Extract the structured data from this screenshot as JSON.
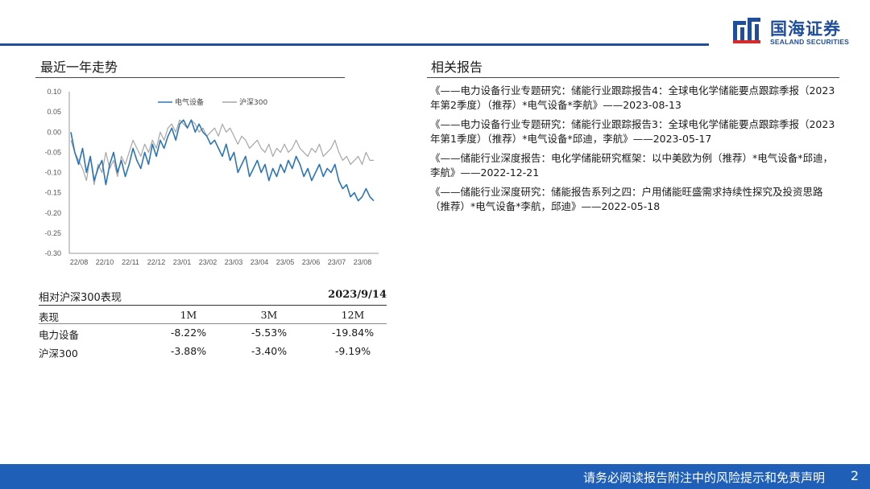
{
  "brand": {
    "name_cn": "国海证券",
    "name_en": "SEALAND SECURITIES",
    "color": "#1f4e9c"
  },
  "left_section": {
    "title": "最近一年走势"
  },
  "chart_data": {
    "type": "line",
    "title": "",
    "xlabel": "",
    "ylabel": "",
    "x_ticks": [
      "22/08",
      "22/10",
      "22/11",
      "22/12",
      "23/01",
      "23/02",
      "23/03",
      "23/04",
      "23/05",
      "23/06",
      "23/07",
      "23/08"
    ],
    "y_ticks": [
      "0.10",
      "0.05",
      "0.00",
      "-0.05",
      "-0.10",
      "-0.15",
      "-0.20",
      "-0.25",
      "-0.30"
    ],
    "ylim": [
      -0.3,
      0.1
    ],
    "legend_position": "top-center",
    "grid": false,
    "series": [
      {
        "name": "电气设备",
        "color": "#2e75b6",
        "values": [
          0.0,
          -0.05,
          -0.08,
          -0.04,
          -0.1,
          -0.06,
          -0.12,
          -0.09,
          -0.07,
          -0.13,
          -0.08,
          -0.05,
          -0.1,
          -0.07,
          -0.11,
          -0.08,
          -0.04,
          -0.07,
          -0.09,
          -0.05,
          -0.08,
          -0.03,
          -0.06,
          -0.02,
          -0.04,
          -0.01,
          0.01,
          -0.02,
          0.02,
          0.03,
          0.01,
          0.03,
          0.0,
          0.02,
          0.0,
          -0.01,
          -0.03,
          -0.02,
          -0.04,
          -0.06,
          -0.03,
          -0.07,
          -0.05,
          -0.1,
          -0.08,
          -0.06,
          -0.11,
          -0.09,
          -0.07,
          -0.1,
          -0.08,
          -0.12,
          -0.09,
          -0.11,
          -0.08,
          -0.1,
          -0.07,
          -0.09,
          -0.06,
          -0.08,
          -0.11,
          -0.09,
          -0.12,
          -0.1,
          -0.08,
          -0.11,
          -0.09,
          -0.1,
          -0.08,
          -0.12,
          -0.14,
          -0.13,
          -0.16,
          -0.15,
          -0.17,
          -0.16,
          -0.14,
          -0.16,
          -0.17
        ]
      },
      {
        "name": "沪深300",
        "color": "#a6a6a6",
        "values": [
          -0.02,
          -0.05,
          -0.07,
          -0.09,
          -0.12,
          -0.06,
          -0.13,
          -0.08,
          -0.1,
          -0.05,
          -0.09,
          -0.07,
          -0.11,
          -0.06,
          -0.08,
          -0.05,
          -0.02,
          -0.04,
          -0.06,
          -0.03,
          -0.05,
          -0.02,
          -0.04,
          0.0,
          -0.02,
          0.01,
          0.02,
          0.0,
          0.03,
          0.02,
          0.01,
          0.03,
          0.02,
          0.0,
          0.01,
          -0.01,
          0.0,
          0.01,
          -0.01,
          0.02,
          0.0,
          0.01,
          -0.01,
          -0.03,
          -0.01,
          -0.02,
          -0.04,
          -0.03,
          -0.02,
          -0.04,
          -0.05,
          -0.03,
          -0.06,
          -0.04,
          -0.05,
          -0.03,
          -0.05,
          -0.04,
          -0.02,
          -0.04,
          -0.05,
          -0.06,
          -0.04,
          -0.05,
          -0.03,
          -0.06,
          -0.05,
          -0.04,
          -0.02,
          -0.05,
          -0.07,
          -0.06,
          -0.08,
          -0.07,
          -0.06,
          -0.08,
          -0.05,
          -0.07,
          -0.07
        ]
      }
    ]
  },
  "performance": {
    "title": "相对沪深300表现",
    "date": "2023/9/14",
    "headers": [
      "表现",
      "1M",
      "3M",
      "12M"
    ],
    "rows": [
      [
        "电力设备",
        "-8.22%",
        "-5.53%",
        "-19.84%"
      ],
      [
        "沪深300",
        "-3.88%",
        "-3.40%",
        "-9.19%"
      ]
    ]
  },
  "right_section": {
    "title": "相关报告",
    "reports": [
      "《——电力设备行业专题研究：储能行业跟踪报告4：全球电化学储能要点跟踪季报（2023年第2季度）（推荐）*电气设备*李航》——2023-08-13",
      "《——电力设备行业专题研究：储能行业跟踪报告3：全球电化学储能要点跟踪季报（2023年第1季度）（推荐）*电气设备*邱迪，李航》——2023-05-17",
      "《——储能行业深度报告：电化学储能研究框架：以中美欧为例（推荐）*电气设备*邱迪，李航》——2022-12-21",
      "《——储能行业深度研究：储能报告系列之四：户用储能旺盛需求持续性探究及投资思路（推荐）*电气设备*李航，邱迪》——2022-05-18"
    ]
  },
  "footer": {
    "note": "请务必阅读报告附注中的风险提示和免责声明",
    "page": "2"
  }
}
